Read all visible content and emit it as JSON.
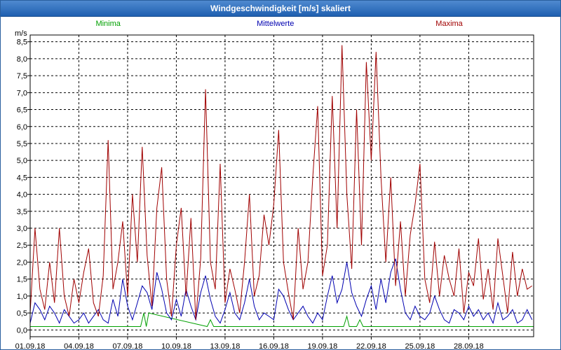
{
  "window": {
    "title": "Windgeschwindigkeit [m/s] skaliert"
  },
  "chart_data": {
    "type": "line",
    "title": "Windgeschwindigkeit [m/s] skaliert",
    "ylabel": "m/s",
    "xlabel": "",
    "ylim": [
      -0.2,
      8.7
    ],
    "yticks": [
      0.0,
      0.5,
      1.0,
      1.5,
      2.0,
      2.5,
      3.0,
      3.5,
      4.0,
      4.5,
      5.0,
      5.5,
      6.0,
      6.5,
      7.0,
      7.5,
      8.0,
      8.5
    ],
    "ytick_labels": [
      "0,0",
      "0,5",
      "1,0",
      "1,5",
      "2,0",
      "2,5",
      "3,0",
      "3,5",
      "4,0",
      "4,5",
      "5,0",
      "5,5",
      "6,0",
      "6,5",
      "7,0",
      "7,5",
      "8,0",
      "8,5"
    ],
    "xlim": [
      0,
      31
    ],
    "xticks": [
      0,
      3,
      6,
      9,
      12,
      15,
      18,
      21,
      24,
      27
    ],
    "xtick_labels": [
      "01.09.18",
      "04.09.18",
      "07.09.18",
      "10.09.18",
      "13.09.18",
      "16.09.18",
      "19.09.18",
      "22.09.18",
      "25.09.18",
      "28.09.18"
    ],
    "grid": true,
    "legend_position": "top",
    "series": [
      {
        "name": "Minima",
        "color": "#00a000",
        "x": [
          0,
          6.8,
          7.0,
          7.15,
          7.3,
          10.9,
          11.1,
          11.3,
          19.3,
          19.5,
          19.65,
          20.1,
          20.3,
          20.5,
          31
        ],
        "y": [
          0.1,
          0.1,
          0.5,
          0.1,
          0.5,
          0.1,
          0.3,
          0.1,
          0.1,
          0.4,
          0.1,
          0.1,
          0.3,
          0.1,
          0.1
        ]
      },
      {
        "name": "Mittelwerte",
        "color": "#0000b0",
        "x": [
          0,
          0.3,
          0.6,
          0.9,
          1.2,
          1.5,
          1.8,
          2.1,
          2.4,
          2.7,
          3.0,
          3.3,
          3.6,
          3.9,
          4.2,
          4.5,
          4.8,
          5.1,
          5.4,
          5.7,
          6.0,
          6.3,
          6.6,
          6.9,
          7.2,
          7.5,
          7.8,
          8.1,
          8.4,
          8.7,
          9.0,
          9.3,
          9.6,
          9.9,
          10.2,
          10.5,
          10.8,
          11.1,
          11.4,
          11.7,
          12.0,
          12.3,
          12.6,
          12.9,
          13.2,
          13.5,
          13.8,
          14.1,
          14.4,
          14.7,
          15.0,
          15.3,
          15.6,
          15.9,
          16.2,
          16.5,
          16.8,
          17.1,
          17.4,
          17.7,
          18.0,
          18.3,
          18.6,
          18.9,
          19.2,
          19.5,
          19.8,
          20.1,
          20.4,
          20.7,
          21.0,
          21.3,
          21.6,
          21.9,
          22.2,
          22.5,
          22.8,
          23.1,
          23.4,
          23.7,
          24.0,
          24.3,
          24.6,
          24.9,
          25.2,
          25.5,
          25.8,
          26.1,
          26.4,
          26.7,
          27.0,
          27.3,
          27.6,
          27.9,
          28.2,
          28.5,
          28.8,
          29.1,
          29.4,
          29.7,
          30.0,
          30.3,
          30.6,
          30.9
        ],
        "y": [
          0.2,
          0.8,
          0.6,
          0.3,
          0.7,
          0.5,
          0.2,
          0.6,
          0.4,
          0.2,
          0.3,
          0.5,
          0.2,
          0.4,
          0.6,
          0.3,
          0.2,
          0.9,
          0.4,
          1.5,
          0.7,
          0.3,
          0.8,
          1.3,
          1.1,
          0.6,
          1.7,
          1.2,
          0.5,
          0.3,
          0.9,
          0.4,
          1.2,
          0.7,
          0.3,
          1.1,
          1.6,
          0.9,
          0.4,
          0.2,
          0.6,
          1.1,
          0.5,
          0.3,
          0.8,
          1.5,
          0.7,
          0.3,
          0.5,
          0.4,
          0.3,
          1.2,
          1.0,
          0.6,
          0.3,
          0.5,
          0.7,
          0.4,
          0.2,
          0.5,
          0.3,
          1.0,
          1.6,
          0.8,
          1.2,
          2.0,
          1.1,
          0.7,
          0.4,
          0.9,
          1.3,
          0.6,
          1.5,
          0.8,
          1.7,
          2.1,
          1.2,
          0.5,
          0.3,
          0.7,
          0.4,
          0.3,
          0.5,
          1.0,
          0.6,
          0.3,
          0.2,
          0.6,
          0.5,
          0.3,
          0.7,
          0.4,
          0.6,
          0.3,
          0.5,
          0.2,
          0.8,
          0.3,
          0.4,
          0.6,
          0.2,
          0.3,
          0.6,
          0.3
        ]
      },
      {
        "name": "Maxima",
        "color": "#a00000",
        "x": [
          0,
          0.3,
          0.6,
          0.9,
          1.2,
          1.5,
          1.8,
          2.1,
          2.4,
          2.7,
          3.0,
          3.3,
          3.6,
          3.9,
          4.2,
          4.5,
          4.8,
          5.1,
          5.4,
          5.7,
          6.0,
          6.3,
          6.6,
          6.9,
          7.2,
          7.5,
          7.8,
          8.1,
          8.4,
          8.7,
          9.0,
          9.3,
          9.6,
          9.9,
          10.2,
          10.5,
          10.8,
          11.1,
          11.4,
          11.7,
          12.0,
          12.3,
          12.6,
          12.9,
          13.2,
          13.5,
          13.8,
          14.1,
          14.4,
          14.7,
          15.0,
          15.3,
          15.6,
          15.9,
          16.2,
          16.5,
          16.8,
          17.1,
          17.4,
          17.7,
          18.0,
          18.3,
          18.6,
          18.9,
          19.2,
          19.5,
          19.8,
          20.1,
          20.4,
          20.7,
          21.0,
          21.3,
          21.6,
          21.9,
          22.2,
          22.5,
          22.8,
          23.1,
          23.4,
          23.7,
          24.0,
          24.3,
          24.6,
          24.9,
          25.2,
          25.5,
          25.8,
          26.1,
          26.4,
          26.7,
          27.0,
          27.3,
          27.6,
          27.9,
          28.2,
          28.5,
          28.8,
          29.1,
          29.4,
          29.7,
          30.0,
          30.3,
          30.6,
          30.9
        ],
        "y": [
          0.5,
          3.0,
          1.2,
          0.6,
          2.0,
          0.8,
          3.0,
          1.0,
          0.4,
          1.5,
          0.8,
          1.7,
          2.4,
          0.8,
          0.4,
          1.6,
          5.6,
          1.2,
          2.0,
          3.2,
          1.0,
          4.0,
          2.0,
          5.4,
          2.2,
          0.7,
          3.6,
          4.8,
          1.5,
          0.4,
          2.5,
          3.6,
          1.0,
          3.3,
          0.3,
          2.1,
          7.1,
          2.0,
          1.2,
          4.9,
          0.8,
          1.8,
          1.2,
          0.5,
          2.0,
          4.0,
          1.0,
          1.6,
          3.4,
          2.5,
          3.7,
          5.9,
          2.0,
          1.1,
          0.3,
          3.0,
          1.2,
          2.0,
          4.5,
          6.6,
          1.6,
          2.5,
          6.9,
          3.0,
          8.4,
          4.0,
          1.8,
          6.5,
          2.5,
          7.9,
          5.0,
          8.2,
          4.5,
          2.0,
          4.5,
          1.3,
          3.2,
          1.0,
          2.8,
          3.7,
          4.9,
          1.5,
          0.8,
          2.6,
          1.0,
          2.2,
          1.5,
          1.0,
          2.4,
          0.5,
          1.7,
          1.3,
          2.7,
          0.9,
          1.8,
          0.6,
          2.7,
          1.6,
          0.5,
          2.3,
          1.0,
          1.8,
          1.2,
          1.3
        ]
      }
    ]
  }
}
